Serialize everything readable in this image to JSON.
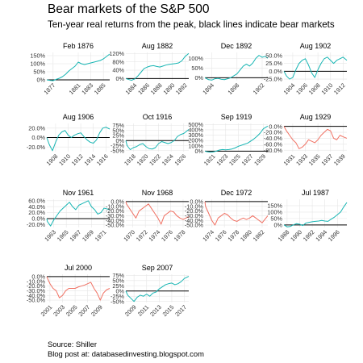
{
  "title": "Bear markets of the S&P 500",
  "subtitle": "Ten-year real returns from the peak, black lines indicate bear markets",
  "caption_source": "Source: Shiller",
  "caption_blog": "Blog post at: databasedinvesting.blogspot.com",
  "colors": {
    "gain": "#17b5b3",
    "loss": "#f07062",
    "zero": "#000000",
    "grid": "#e6e6e6",
    "panel": "#ffffff"
  },
  "chart_data": {
    "type": "line",
    "panels": [
      {
        "title": "Feb 1876",
        "ylim": [
          -5,
          170
        ],
        "yticks": [
          0,
          50,
          100,
          150
        ],
        "yticklabels": [
          "0%",
          "50%",
          "100%",
          "150%"
        ],
        "xlim": [
          1876,
          1886
        ],
        "xticks": [
          1877,
          1881,
          1883,
          1885
        ],
        "xticklabels": [
          "1877",
          "1881",
          "1883",
          "1885"
        ],
        "color": "gain",
        "x": [
          1876,
          1876.5,
          1877,
          1877.5,
          1878,
          1878.5,
          1879,
          1879.5,
          1880,
          1880.5,
          1881,
          1881.5,
          1882,
          1882.5,
          1883,
          1883.5,
          1884,
          1884.5,
          1885,
          1885.5,
          1886
        ],
        "values": [
          0,
          -3,
          -5,
          3,
          10,
          20,
          35,
          55,
          70,
          85,
          110,
          100,
          95,
          100,
          105,
          110,
          115,
          120,
          130,
          145,
          160
        ]
      },
      {
        "title": "Aug 1882",
        "ylim": [
          -10,
          125
        ],
        "yticks": [
          0,
          40,
          80,
          120
        ],
        "yticklabels": [
          "0%",
          "40%",
          "80%",
          "120%"
        ],
        "xlim": [
          1882.6,
          1892.6
        ],
        "xticks": [
          1884,
          1886,
          1888,
          1890,
          1892
        ],
        "xticklabels": [
          "1884",
          "1886",
          "1888",
          "1890",
          "1892"
        ],
        "color": "gain",
        "x": [
          1882.6,
          1883,
          1883.5,
          1884,
          1884.5,
          1885,
          1885.5,
          1886,
          1886.5,
          1887,
          1887.5,
          1888,
          1888.5,
          1889,
          1889.5,
          1890,
          1890.5,
          1891,
          1891.5,
          1892,
          1892.6
        ],
        "values": [
          0,
          -4,
          -8,
          -2,
          12,
          30,
          48,
          55,
          60,
          62,
          58,
          55,
          60,
          65,
          68,
          70,
          72,
          75,
          85,
          105,
          120
        ]
      },
      {
        "title": "Dec 1892",
        "ylim": [
          -15,
          130
        ],
        "yticks": [
          0,
          50,
          100
        ],
        "yticklabels": [
          "0%",
          "50%",
          "100%"
        ],
        "xlim": [
          1892.9,
          1902.9
        ],
        "xticks": [
          1894,
          1898,
          1902
        ],
        "xticklabels": [
          "1894",
          "1898",
          "1902"
        ],
        "color": "gain",
        "x": [
          1892.9,
          1893.5,
          1894,
          1894.5,
          1895,
          1895.5,
          1896,
          1896.5,
          1897,
          1897.5,
          1898,
          1898.5,
          1899,
          1899.5,
          1900,
          1900.5,
          1901,
          1901.5,
          1902,
          1902.5,
          1902.9
        ],
        "values": [
          0,
          -10,
          -12,
          -5,
          -3,
          -8,
          -10,
          -5,
          0,
          10,
          20,
          40,
          60,
          70,
          60,
          75,
          100,
          115,
          105,
          110,
          100
        ]
      },
      {
        "title": "Aug 1902",
        "ylim": [
          -30,
          60
        ],
        "yticks": [
          -25,
          0,
          25,
          50
        ],
        "yticklabels": [
          "-25.0%",
          "0.0%",
          "25.0%",
          "50.0%"
        ],
        "xlim": [
          1902.6,
          1912.6
        ],
        "xticks": [
          1904,
          1906,
          1908,
          1910,
          1912
        ],
        "xticklabels": [
          "1904",
          "1906",
          "1908",
          "1910",
          "1912"
        ],
        "color": "gain",
        "x": [
          1902.6,
          1903,
          1903.5,
          1904,
          1904.5,
          1905,
          1905.5,
          1906,
          1906.5,
          1907,
          1907.5,
          1908,
          1908.5,
          1909,
          1909.5,
          1910,
          1910.5,
          1911,
          1911.5,
          1912,
          1912.6
        ],
        "values": [
          0,
          -15,
          -25,
          -20,
          5,
          25,
          35,
          40,
          20,
          -5,
          -20,
          5,
          25,
          40,
          45,
          35,
          25,
          35,
          40,
          45,
          35
        ]
      },
      {
        "title": "Aug 1906",
        "ylim": [
          -30,
          30
        ],
        "yticks": [
          -20,
          0,
          20
        ],
        "yticklabels": [
          "-20.0%",
          "0.0%",
          "20.0%"
        ],
        "xlim": [
          1906.6,
          1916.6
        ],
        "xticks": [
          1908,
          1910,
          1912,
          1914,
          1916
        ],
        "xticklabels": [
          "1908",
          "1910",
          "1912",
          "1914",
          "1916"
        ],
        "color": "gain",
        "x": [
          1906.6,
          1907,
          1907.5,
          1908,
          1908.5,
          1909,
          1909.5,
          1910,
          1910.5,
          1911,
          1911.5,
          1912,
          1912.5,
          1913,
          1913.5,
          1914,
          1914.5,
          1915,
          1915.5,
          1916,
          1916.6
        ],
        "values": [
          0,
          -15,
          -28,
          -10,
          5,
          12,
          15,
          5,
          0,
          5,
          8,
          10,
          2,
          -5,
          -10,
          -12,
          -5,
          10,
          20,
          22,
          18
        ]
      },
      {
        "title": "Oct 1916",
        "ylim": [
          -55,
          85
        ],
        "yticks": [
          -50,
          -25,
          0,
          25,
          50,
          75
        ],
        "yticklabels": [
          "-50%",
          "-25%",
          "0%",
          "25%",
          "50%",
          "75%"
        ],
        "xlim": [
          1916.8,
          1926.8
        ],
        "xticks": [
          1918,
          1920,
          1922,
          1924,
          1926
        ],
        "xticklabels": [
          "1918",
          "1920",
          "1922",
          "1924",
          "1926"
        ],
        "color": "gain",
        "x": [
          1916.8,
          1917,
          1917.5,
          1918,
          1918.5,
          1919,
          1919.5,
          1920,
          1920.5,
          1921,
          1921.5,
          1922,
          1922.5,
          1923,
          1923.5,
          1924,
          1924.5,
          1925,
          1925.5,
          1926,
          1926.8
        ],
        "values": [
          0,
          -25,
          -45,
          -35,
          -30,
          -20,
          -15,
          -30,
          -40,
          -42,
          -35,
          -15,
          -5,
          -10,
          -15,
          -10,
          0,
          20,
          30,
          35,
          55
        ]
      },
      {
        "title": "Sep 1919",
        "ylim": [
          -10,
          520
        ],
        "yticks": [
          0,
          100,
          200,
          300,
          400,
          500
        ],
        "yticklabels": [
          "0%",
          "100%",
          "200%",
          "300%",
          "400%",
          "500%"
        ],
        "xlim": [
          1919.7,
          1929.7
        ],
        "xticks": [
          1921,
          1923,
          1925,
          1927,
          1929
        ],
        "xticklabels": [
          "1921",
          "1923",
          "1925",
          "1927",
          "1929"
        ],
        "color": "gain",
        "x": [
          1919.7,
          1920,
          1920.5,
          1921,
          1921.5,
          1922,
          1922.5,
          1923,
          1923.5,
          1924,
          1924.5,
          1925,
          1925.5,
          1926,
          1926.5,
          1927,
          1927.5,
          1928,
          1928.5,
          1929,
          1929.7
        ],
        "values": [
          0,
          -10,
          -20,
          -15,
          0,
          20,
          30,
          25,
          30,
          40,
          60,
          90,
          110,
          130,
          150,
          190,
          230,
          280,
          340,
          420,
          470
        ]
      },
      {
        "title": "Aug 1929",
        "ylim": [
          -85,
          10
        ],
        "yticks": [
          -80,
          -60,
          -40,
          -20,
          0
        ],
        "yticklabels": [
          "-80.0%",
          "-60.0%",
          "-40.0%",
          "-20.0%",
          "0.0%"
        ],
        "xlim": [
          1929.6,
          1939.6
        ],
        "xticks": [
          1931,
          1933,
          1935,
          1937,
          1939
        ],
        "xticklabels": [
          "1931",
          "1933",
          "1935",
          "1937",
          "1939"
        ],
        "color": "loss",
        "x": [
          1929.6,
          1930,
          1930.5,
          1931,
          1931.5,
          1932,
          1932.5,
          1933,
          1933.5,
          1934,
          1934.5,
          1935,
          1935.5,
          1936,
          1936.5,
          1937,
          1937.5,
          1938,
          1938.5,
          1939,
          1939.6
        ],
        "values": [
          0,
          -15,
          -30,
          -45,
          -55,
          -75,
          -70,
          -60,
          -45,
          -50,
          -55,
          -45,
          -30,
          -20,
          -10,
          -15,
          -40,
          -45,
          -30,
          -35,
          -40
        ]
      },
      {
        "title": "Nov 1961",
        "ylim": [
          -30,
          65
        ],
        "yticks": [
          -20,
          0,
          20,
          40,
          60
        ],
        "yticklabels": [
          "-20.0%",
          "0.0%",
          "20.0%",
          "40.0%",
          "60.0%"
        ],
        "xlim": [
          1961.9,
          1971.9
        ],
        "xticks": [
          1963,
          1965,
          1967,
          1969,
          1971
        ],
        "xticklabels": [
          "1963",
          "1965",
          "1967",
          "1969",
          "1971"
        ],
        "color": "gain",
        "x": [
          1961.9,
          1962,
          1962.5,
          1963,
          1963.5,
          1964,
          1964.5,
          1965,
          1965.5,
          1966,
          1966.5,
          1967,
          1967.5,
          1968,
          1968.5,
          1969,
          1969.5,
          1970,
          1970.5,
          1971,
          1971.9
        ],
        "values": [
          0,
          -10,
          -25,
          -5,
          10,
          25,
          35,
          45,
          55,
          40,
          30,
          45,
          50,
          55,
          60,
          40,
          30,
          15,
          20,
          35,
          30
        ]
      },
      {
        "title": "Nov 1968",
        "ylim": [
          -55,
          5
        ],
        "yticks": [
          -50,
          -40,
          -30,
          -20,
          -10,
          0
        ],
        "yticklabels": [
          "-50.0%",
          "-40.0%",
          "-30.0%",
          "-20.0%",
          "-10.0%",
          "0.0%"
        ],
        "xlim": [
          1968.9,
          1978.9
        ],
        "xticks": [
          1970,
          1972,
          1974,
          1976,
          1978
        ],
        "xticklabels": [
          "1970",
          "1972",
          "1974",
          "1976",
          "1978"
        ],
        "color": "loss",
        "x": [
          1968.9,
          1969,
          1969.5,
          1970,
          1970.5,
          1971,
          1971.5,
          1972,
          1972.5,
          1973,
          1973.5,
          1974,
          1974.5,
          1975,
          1975.5,
          1976,
          1976.5,
          1977,
          1977.5,
          1978,
          1978.9
        ],
        "values": [
          0,
          -5,
          -15,
          -25,
          -35,
          -20,
          -15,
          -10,
          -5,
          -15,
          -25,
          -35,
          -48,
          -30,
          -25,
          -20,
          -22,
          -30,
          -35,
          -38,
          -32
        ]
      },
      {
        "title": "Dec 1972",
        "ylim": [
          -55,
          5
        ],
        "yticks": [
          -50,
          -40,
          -30,
          -20,
          -10,
          0
        ],
        "yticklabels": [
          "-50.0%",
          "-40.0%",
          "-30.0%",
          "-20.0%",
          "-10.0%",
          "0.0%"
        ],
        "xlim": [
          1972.9,
          1982.9
        ],
        "xticks": [
          1974,
          1976,
          1978,
          1980,
          1982
        ],
        "xticklabels": [
          "1974",
          "1976",
          "1978",
          "1980",
          "1982"
        ],
        "color": "loss",
        "x": [
          1972.9,
          1973,
          1973.5,
          1974,
          1974.5,
          1975,
          1975.5,
          1976,
          1976.5,
          1977,
          1977.5,
          1978,
          1978.5,
          1979,
          1979.5,
          1980,
          1980.5,
          1981,
          1981.5,
          1982,
          1982.9
        ],
        "values": [
          0,
          -10,
          -25,
          -40,
          -50,
          -35,
          -30,
          -25,
          -28,
          -35,
          -40,
          -42,
          -38,
          -35,
          -38,
          -35,
          -30,
          -35,
          -40,
          -45,
          -30
        ]
      },
      {
        "title": "Jul 1987",
        "ylim": [
          -20,
          200
        ],
        "yticks": [
          0,
          50,
          100,
          150
        ],
        "yticklabels": [
          "0%",
          "50%",
          "100%",
          "150%"
        ],
        "xlim": [
          1987.5,
          1997.5
        ],
        "xticks": [
          1988,
          1990,
          1992,
          1994,
          1996
        ],
        "xticklabels": [
          "1988",
          "1990",
          "1992",
          "1994",
          "1996"
        ],
        "color": "gain",
        "x": [
          1987.5,
          1988,
          1988.5,
          1989,
          1989.5,
          1990,
          1990.5,
          1991,
          1991.5,
          1992,
          1992.5,
          1993,
          1993.5,
          1994,
          1994.5,
          1995,
          1995.5,
          1996,
          1996.5,
          1997,
          1997.5
        ],
        "values": [
          0,
          -15,
          -12,
          0,
          10,
          5,
          -5,
          15,
          20,
          25,
          28,
          30,
          35,
          30,
          28,
          45,
          60,
          80,
          100,
          140,
          175
        ]
      },
      {
        "title": "Jul 2000",
        "ylim": [
          -55,
          5
        ],
        "yticks": [
          -50,
          -40,
          -30,
          -20,
          -10,
          0
        ],
        "yticklabels": [
          "-50.0%",
          "-40.0%",
          "-30.0%",
          "-20.0%",
          "-10.0%",
          "0.0%"
        ],
        "xlim": [
          2000.5,
          2010.5
        ],
        "xticks": [
          2001,
          2003,
          2005,
          2007,
          2009
        ],
        "xticklabels": [
          "2001",
          "2003",
          "2005",
          "2007",
          "2009"
        ],
        "color": "loss",
        "x": [
          2000.5,
          2001,
          2001.5,
          2002,
          2002.5,
          2003,
          2003.5,
          2004,
          2004.5,
          2005,
          2005.5,
          2006,
          2006.5,
          2007,
          2007.5,
          2008,
          2008.5,
          2009,
          2009.5,
          2010,
          2010.5
        ],
        "values": [
          0,
          -15,
          -25,
          -30,
          -45,
          -40,
          -30,
          -25,
          -25,
          -25,
          -22,
          -20,
          -18,
          -15,
          -12,
          -25,
          -35,
          -50,
          -35,
          -28,
          -25
        ]
      },
      {
        "title": "Sep 2007",
        "ylim": [
          -55,
          80
        ],
        "yticks": [
          -50,
          -25,
          0,
          25,
          50,
          75
        ],
        "yticklabels": [
          "-50%",
          "-25%",
          "0%",
          "25%",
          "50%",
          "75%"
        ],
        "xlim": [
          2007.7,
          2017.7
        ],
        "xticks": [
          2009,
          2011,
          2013,
          2015,
          2017
        ],
        "xticklabels": [
          "2009",
          "2011",
          "2013",
          "2015",
          "2017"
        ],
        "color": "gain",
        "x": [
          2007.7,
          2008,
          2008.5,
          2009,
          2009.5,
          2010,
          2010.5,
          2011,
          2011.5,
          2012,
          2012.5,
          2013,
          2013.5,
          2014,
          2014.5,
          2015,
          2015.5,
          2016,
          2016.5,
          2017,
          2017.7
        ],
        "values": [
          0,
          -20,
          -35,
          -50,
          -30,
          -20,
          -25,
          -15,
          -25,
          -10,
          -5,
          10,
          20,
          30,
          35,
          38,
          30,
          35,
          45,
          60,
          70
        ]
      }
    ]
  }
}
